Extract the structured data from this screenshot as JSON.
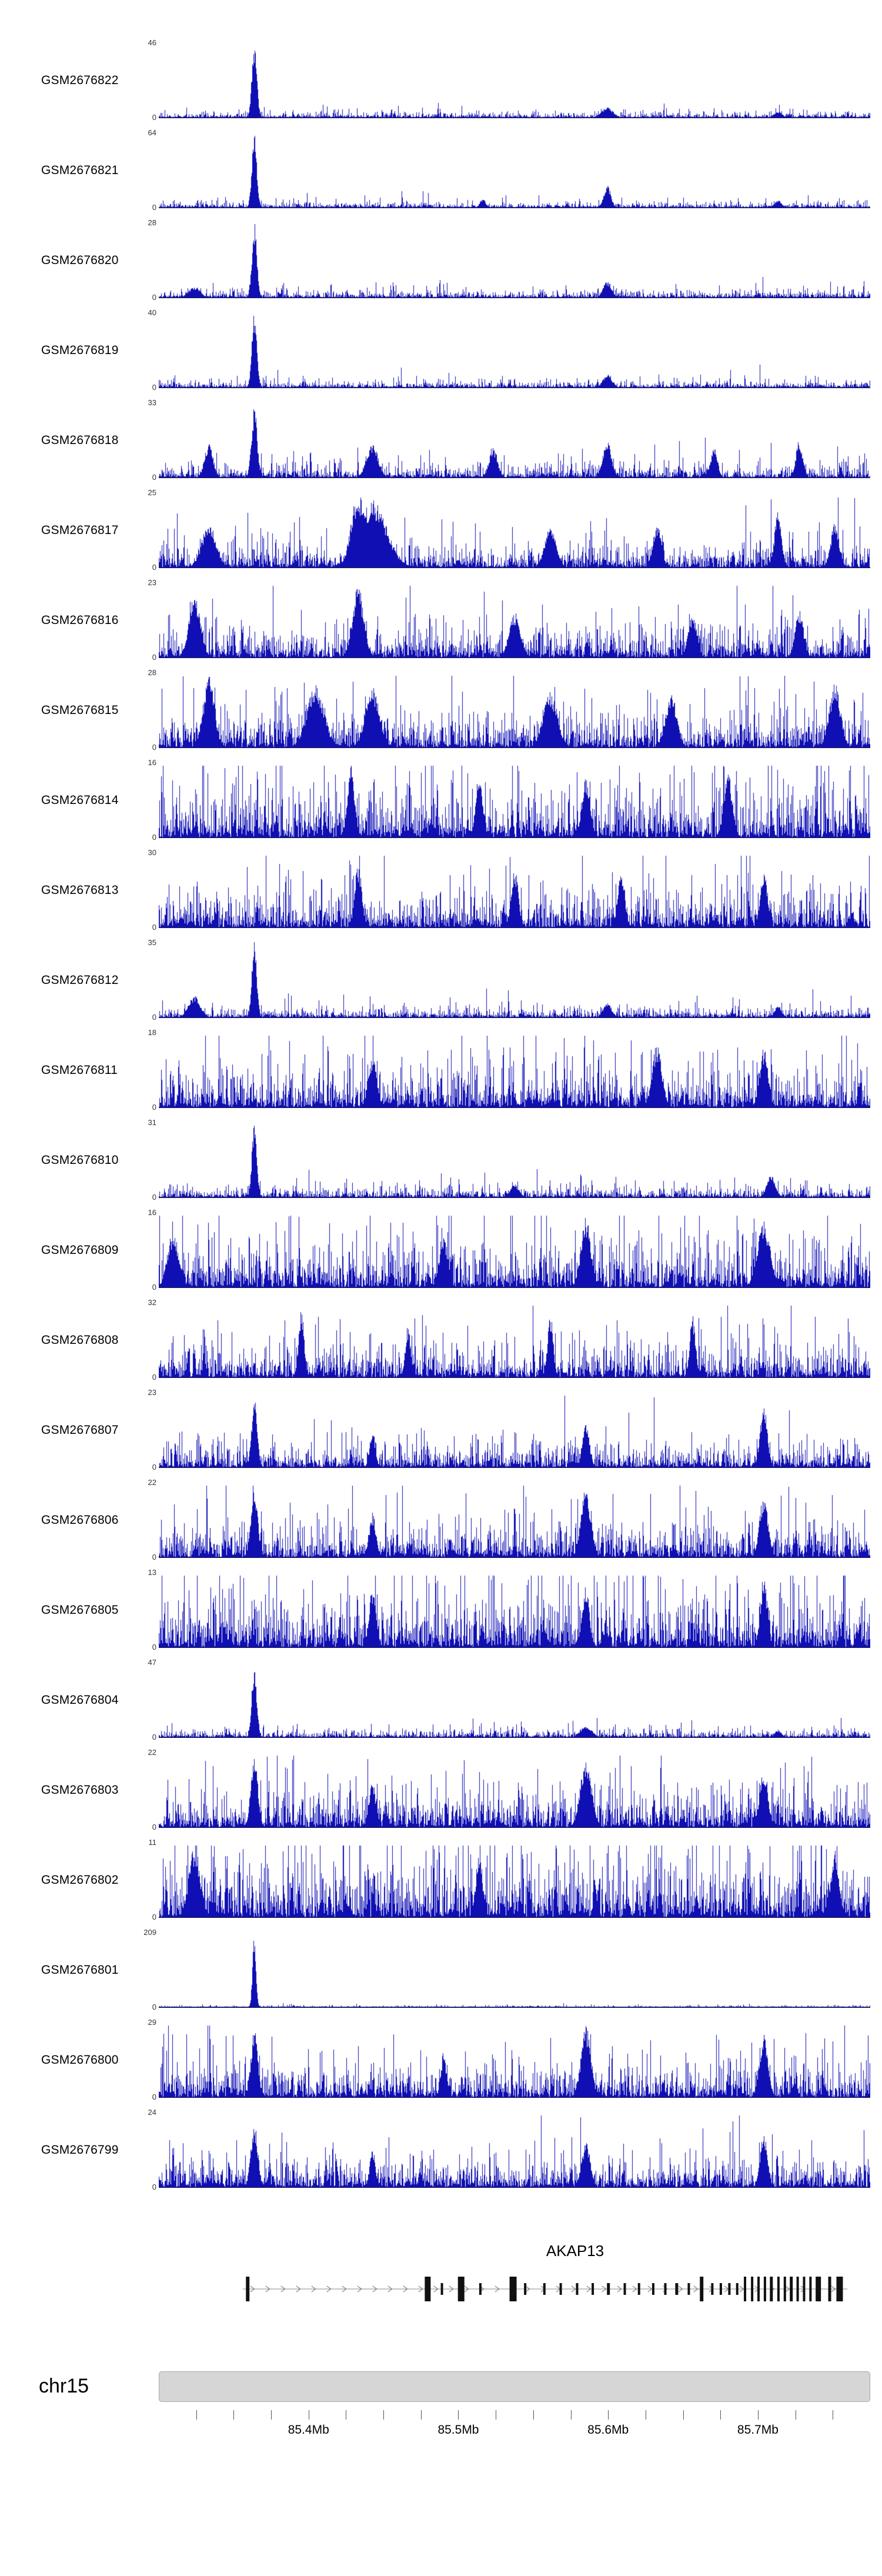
{
  "chart_data": {
    "type": "area",
    "description": "Genome browser view: 24 GSM sample coverage signal tracks (blue histograms) over chr15 around the AKAP13 gene locus, with gene model, chromosome ideogram and megabase coordinate axis.",
    "signal_color": "#0f0fb4",
    "region": {
      "chromosome": "chr15",
      "start_mb": 85.3,
      "end_mb": 85.775
    },
    "axis": {
      "minor_tick_mb": 0.025,
      "labels": [
        {
          "mb": 85.4,
          "text": "85.4Mb"
        },
        {
          "mb": 85.5,
          "text": "85.5Mb"
        },
        {
          "mb": 85.6,
          "text": "85.6Mb"
        },
        {
          "mb": 85.7,
          "text": "85.7Mb"
        }
      ]
    },
    "gene_track": {
      "gene": "AKAP13",
      "strand": "+",
      "line_start": 0.118,
      "line_end": 0.968,
      "exons": [
        [
          0.125,
          6,
          1
        ],
        [
          0.378,
          10,
          1
        ],
        [
          0.398,
          4,
          0
        ],
        [
          0.425,
          11,
          1
        ],
        [
          0.452,
          4,
          0
        ],
        [
          0.498,
          12,
          1
        ],
        [
          0.515,
          4,
          0
        ],
        [
          0.542,
          4,
          0
        ],
        [
          0.565,
          4,
          0
        ],
        [
          0.588,
          4,
          0
        ],
        [
          0.61,
          4,
          0
        ],
        [
          0.632,
          5,
          0
        ],
        [
          0.655,
          4,
          0
        ],
        [
          0.675,
          4,
          0
        ],
        [
          0.695,
          4,
          0
        ],
        [
          0.712,
          4,
          0
        ],
        [
          0.728,
          5,
          0
        ],
        [
          0.745,
          4,
          0
        ],
        [
          0.763,
          6,
          1
        ],
        [
          0.778,
          4,
          0
        ],
        [
          0.79,
          4,
          0
        ],
        [
          0.802,
          4,
          0
        ],
        [
          0.813,
          4,
          0
        ],
        [
          0.824,
          4,
          1
        ],
        [
          0.834,
          4,
          1
        ],
        [
          0.843,
          4,
          1
        ],
        [
          0.852,
          4,
          1
        ],
        [
          0.861,
          5,
          1
        ],
        [
          0.871,
          4,
          1
        ],
        [
          0.88,
          4,
          1
        ],
        [
          0.889,
          5,
          1
        ],
        [
          0.898,
          4,
          1
        ],
        [
          0.907,
          4,
          1
        ],
        [
          0.916,
          4,
          1
        ],
        [
          0.927,
          9,
          1
        ],
        [
          0.943,
          5,
          1
        ],
        [
          0.957,
          11,
          1
        ]
      ]
    },
    "ideogram": {
      "label": "chr15",
      "color": "#d6d6d6"
    },
    "tracks": [
      {
        "id": "GSM2676822",
        "ymax": 46,
        "ymin": 0,
        "base": 0.05,
        "peaks": [
          [
            0.134,
            1,
            0.0035
          ],
          [
            0.63,
            0.14,
            0.008
          ],
          [
            0.87,
            0.08,
            0.006
          ]
        ]
      },
      {
        "id": "GSM2676821",
        "ymax": 64,
        "ymin": 0,
        "base": 0.05,
        "peaks": [
          [
            0.134,
            1,
            0.0035
          ],
          [
            0.63,
            0.3,
            0.005
          ],
          [
            0.455,
            0.12,
            0.004
          ],
          [
            0.87,
            0.1,
            0.005
          ]
        ]
      },
      {
        "id": "GSM2676820",
        "ymax": 28,
        "ymin": 0,
        "base": 0.07,
        "peaks": [
          [
            0.134,
            1,
            0.0035
          ],
          [
            0.63,
            0.22,
            0.006
          ],
          [
            0.05,
            0.15,
            0.008
          ]
        ]
      },
      {
        "id": "GSM2676819",
        "ymax": 40,
        "ymin": 0,
        "base": 0.06,
        "peaks": [
          [
            0.134,
            1,
            0.0035
          ],
          [
            0.63,
            0.18,
            0.006
          ]
        ]
      },
      {
        "id": "GSM2676818",
        "ymax": 33,
        "ymin": 0,
        "base": 0.13,
        "peaks": [
          [
            0.134,
            0.95,
            0.004
          ],
          [
            0.07,
            0.45,
            0.006
          ],
          [
            0.3,
            0.45,
            0.008
          ],
          [
            0.47,
            0.4,
            0.006
          ],
          [
            0.63,
            0.5,
            0.006
          ],
          [
            0.78,
            0.4,
            0.005
          ],
          [
            0.9,
            0.5,
            0.005
          ]
        ]
      },
      {
        "id": "GSM2676817",
        "ymax": 25,
        "ymin": 0,
        "base": 0.22,
        "peaks": [
          [
            0.28,
            1,
            0.01
          ],
          [
            0.3,
            0.9,
            0.02
          ],
          [
            0.07,
            0.6,
            0.01
          ],
          [
            0.55,
            0.55,
            0.008
          ],
          [
            0.7,
            0.6,
            0.006
          ],
          [
            0.87,
            0.75,
            0.005
          ],
          [
            0.95,
            0.6,
            0.006
          ]
        ]
      },
      {
        "id": "GSM2676816",
        "ymax": 23,
        "ymin": 0,
        "base": 0.28,
        "peaks": [
          [
            0.28,
            0.95,
            0.008
          ],
          [
            0.05,
            0.85,
            0.008
          ],
          [
            0.5,
            0.6,
            0.008
          ],
          [
            0.75,
            0.6,
            0.006
          ],
          [
            0.9,
            0.65,
            0.006
          ]
        ]
      },
      {
        "id": "GSM2676815",
        "ymax": 28,
        "ymin": 0,
        "base": 0.32,
        "peaks": [
          [
            0.07,
            0.95,
            0.008
          ],
          [
            0.22,
            0.85,
            0.012
          ],
          [
            0.3,
            0.8,
            0.01
          ],
          [
            0.55,
            0.75,
            0.01
          ],
          [
            0.72,
            0.7,
            0.008
          ],
          [
            0.95,
            0.85,
            0.008
          ]
        ]
      },
      {
        "id": "GSM2676814",
        "ymax": 16,
        "ymin": 0,
        "base": 0.45,
        "peaks": [
          [
            0.27,
            0.95,
            0.005
          ],
          [
            0.45,
            0.85,
            0.005
          ],
          [
            0.6,
            0.8,
            0.006
          ],
          [
            0.8,
            0.85,
            0.006
          ]
        ]
      },
      {
        "id": "GSM2676813",
        "ymax": 30,
        "ymin": 0,
        "base": 0.33,
        "peaks": [
          [
            0.28,
            0.85,
            0.005
          ],
          [
            0.5,
            0.8,
            0.005
          ],
          [
            0.65,
            0.75,
            0.005
          ],
          [
            0.85,
            0.8,
            0.005
          ]
        ]
      },
      {
        "id": "GSM2676812",
        "ymax": 35,
        "ymin": 0,
        "base": 0.09,
        "peaks": [
          [
            0.134,
            1,
            0.0035
          ],
          [
            0.05,
            0.3,
            0.008
          ],
          [
            0.63,
            0.2,
            0.006
          ],
          [
            0.87,
            0.15,
            0.005
          ]
        ]
      },
      {
        "id": "GSM2676811",
        "ymax": 18,
        "ymin": 0,
        "base": 0.38,
        "peaks": [
          [
            0.7,
            0.85,
            0.007
          ],
          [
            0.85,
            0.8,
            0.006
          ],
          [
            0.3,
            0.7,
            0.006
          ]
        ]
      },
      {
        "id": "GSM2676810",
        "ymax": 31,
        "ymin": 0,
        "base": 0.1,
        "peaks": [
          [
            0.134,
            1,
            0.0035
          ],
          [
            0.86,
            0.3,
            0.006
          ],
          [
            0.5,
            0.18,
            0.006
          ]
        ]
      },
      {
        "id": "GSM2676809",
        "ymax": 16,
        "ymin": 0,
        "base": 0.42,
        "peaks": [
          [
            0.6,
            0.95,
            0.007
          ],
          [
            0.85,
            0.9,
            0.009
          ],
          [
            0.02,
            0.75,
            0.008
          ],
          [
            0.4,
            0.7,
            0.006
          ]
        ]
      },
      {
        "id": "GSM2676808",
        "ymax": 32,
        "ymin": 0,
        "base": 0.3,
        "peaks": [
          [
            0.2,
            0.9,
            0.004
          ],
          [
            0.55,
            0.85,
            0.004
          ],
          [
            0.75,
            0.85,
            0.004
          ],
          [
            0.35,
            0.7,
            0.004
          ]
        ]
      },
      {
        "id": "GSM2676807",
        "ymax": 23,
        "ymin": 0,
        "base": 0.22,
        "peaks": [
          [
            0.134,
            0.95,
            0.004
          ],
          [
            0.85,
            0.85,
            0.005
          ],
          [
            0.6,
            0.6,
            0.005
          ],
          [
            0.3,
            0.5,
            0.004
          ]
        ]
      },
      {
        "id": "GSM2676806",
        "ymax": 22,
        "ymin": 0,
        "base": 0.32,
        "peaks": [
          [
            0.134,
            0.9,
            0.005
          ],
          [
            0.6,
            0.95,
            0.007
          ],
          [
            0.85,
            0.85,
            0.006
          ],
          [
            0.3,
            0.6,
            0.005
          ]
        ]
      },
      {
        "id": "GSM2676805",
        "ymax": 13,
        "ymin": 0,
        "base": 0.5,
        "peaks": [
          [
            0.85,
            0.95,
            0.005
          ],
          [
            0.3,
            0.8,
            0.005
          ],
          [
            0.6,
            0.8,
            0.005
          ]
        ]
      },
      {
        "id": "GSM2676804",
        "ymax": 47,
        "ymin": 0,
        "base": 0.07,
        "peaks": [
          [
            0.134,
            1,
            0.0035
          ],
          [
            0.6,
            0.16,
            0.008
          ],
          [
            0.87,
            0.1,
            0.005
          ]
        ]
      },
      {
        "id": "GSM2676803",
        "ymax": 22,
        "ymin": 0,
        "base": 0.33,
        "peaks": [
          [
            0.134,
            0.95,
            0.005
          ],
          [
            0.6,
            0.9,
            0.008
          ],
          [
            0.85,
            0.8,
            0.006
          ],
          [
            0.3,
            0.6,
            0.005
          ]
        ]
      },
      {
        "id": "GSM2676802",
        "ymax": 11,
        "ymin": 0,
        "base": 0.55,
        "peaks": [
          [
            0.05,
            0.95,
            0.008
          ],
          [
            0.95,
            0.9,
            0.006
          ],
          [
            0.45,
            0.85,
            0.005
          ]
        ]
      },
      {
        "id": "GSM2676801",
        "ymax": 209,
        "ymin": 0,
        "base": 0.015,
        "peaks": [
          [
            0.134,
            1,
            0.0025
          ]
        ]
      },
      {
        "id": "GSM2676800",
        "ymax": 29,
        "ymin": 0,
        "base": 0.3,
        "peaks": [
          [
            0.134,
            0.9,
            0.005
          ],
          [
            0.6,
            0.95,
            0.007
          ],
          [
            0.85,
            0.85,
            0.006
          ],
          [
            0.4,
            0.6,
            0.004
          ]
        ]
      },
      {
        "id": "GSM2676799",
        "ymax": 24,
        "ymin": 0,
        "base": 0.28,
        "peaks": [
          [
            0.134,
            0.85,
            0.005
          ],
          [
            0.6,
            0.6,
            0.006
          ],
          [
            0.85,
            0.75,
            0.005
          ],
          [
            0.3,
            0.5,
            0.004
          ]
        ]
      }
    ]
  }
}
